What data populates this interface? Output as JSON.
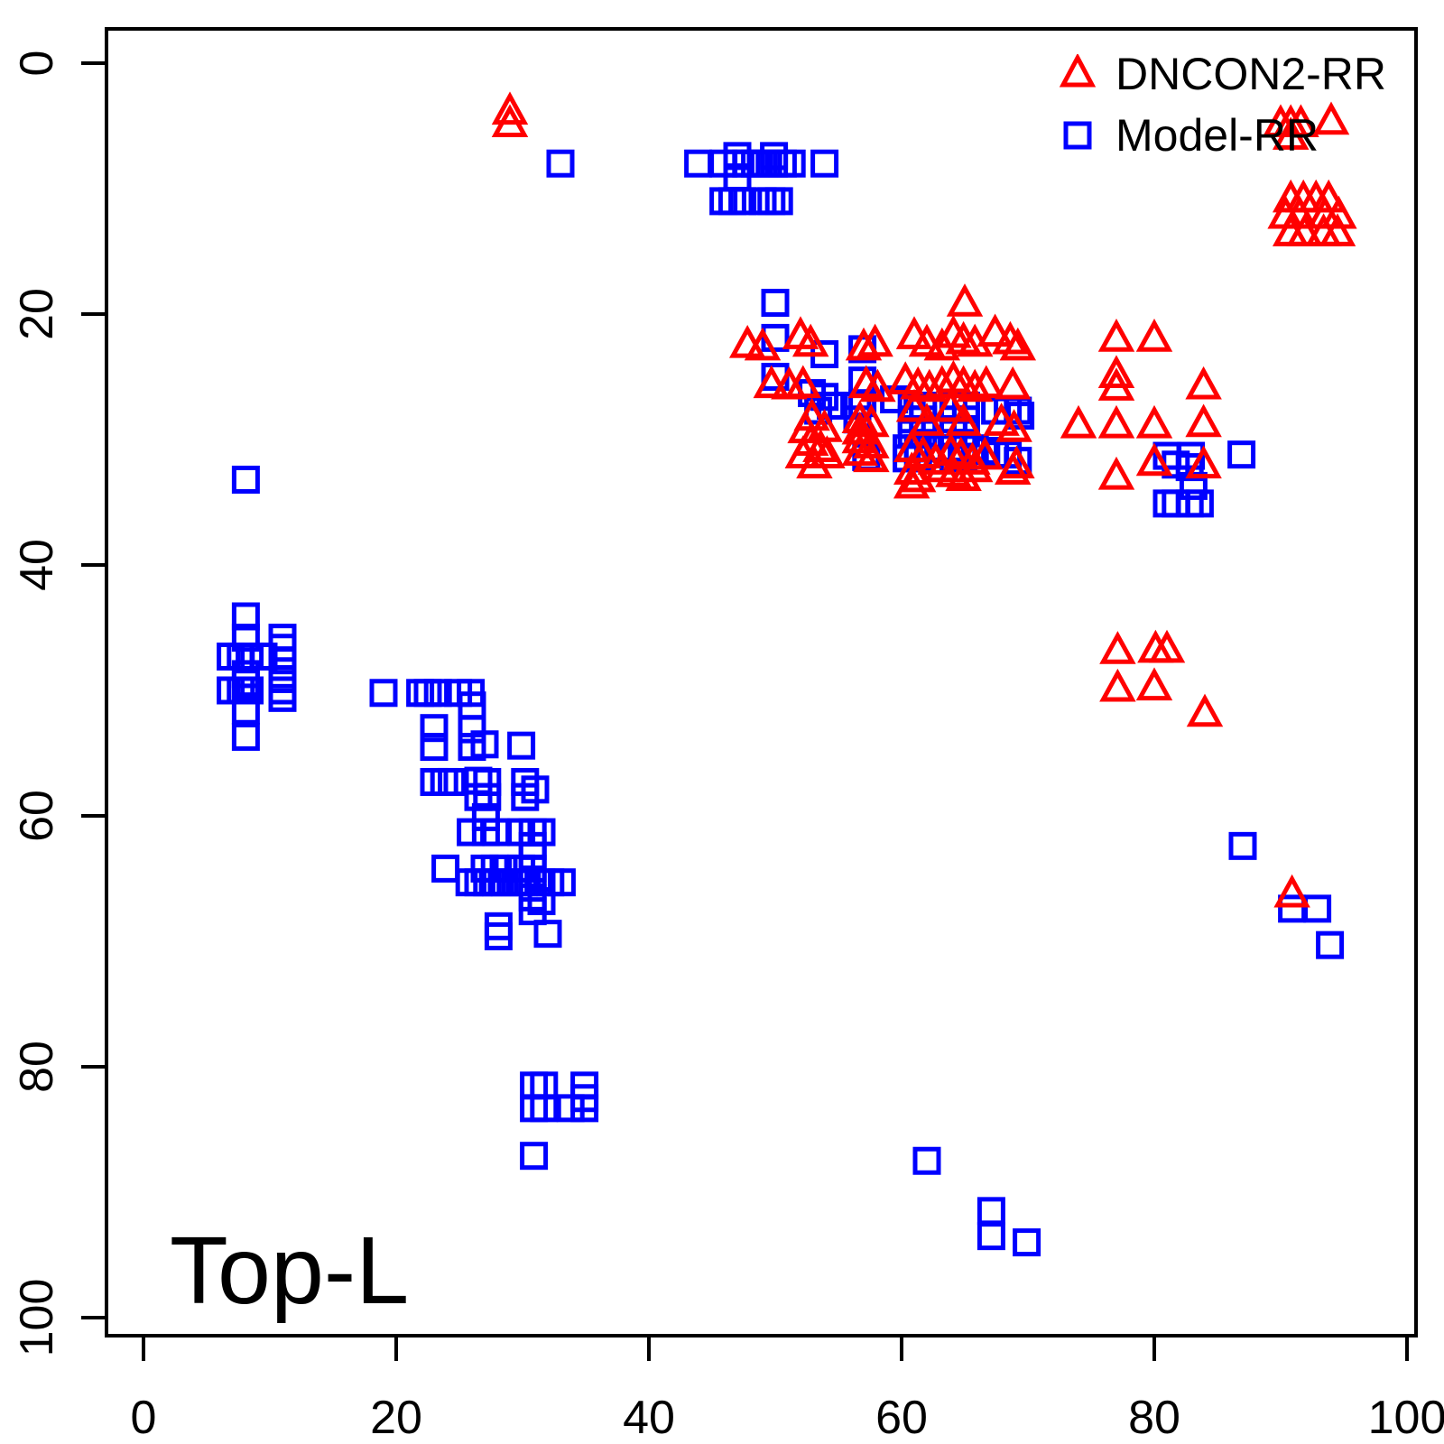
{
  "annotation": {
    "text": "Top-L"
  },
  "legend": {
    "items": [
      {
        "label": "DNCON2-RR",
        "marker": "triangle",
        "color": "#ff0000"
      },
      {
        "label": "Model-RR",
        "marker": "square",
        "color": "#0000ff"
      }
    ]
  },
  "axes": {
    "x_ticks": [
      0,
      20,
      40,
      60,
      80,
      100
    ],
    "y_ticks": [
      0,
      20,
      40,
      60,
      80,
      100
    ]
  },
  "chart_data": {
    "type": "scatter",
    "title": "",
    "xlabel": "",
    "ylabel": "",
    "xlim": [
      0,
      100
    ],
    "ylim": [
      100,
      0
    ],
    "y_axis_inverted": true,
    "grid": false,
    "legend_position": "top-right",
    "annotation": "Top-L",
    "series": [
      {
        "name": "Model-RR",
        "marker": "square",
        "color": "#0000ff",
        "points": [
          [
            33,
            8
          ],
          [
            43.9,
            8
          ],
          [
            45.9,
            8
          ],
          [
            47,
            7.4
          ],
          [
            49.9,
            7.4
          ],
          [
            47,
            8
          ],
          [
            47.7,
            8
          ],
          [
            48.4,
            8
          ],
          [
            49.1,
            8
          ],
          [
            49.9,
            8
          ],
          [
            50.6,
            8
          ],
          [
            51.3,
            8
          ],
          [
            53.9,
            8
          ],
          [
            47,
            9.1
          ],
          [
            45.9,
            11
          ],
          [
            46.6,
            11
          ],
          [
            47.4,
            11
          ],
          [
            49,
            11
          ],
          [
            49.7,
            11
          ],
          [
            50.3,
            11
          ],
          [
            8.1,
            33.2
          ],
          [
            50,
            19.1
          ],
          [
            50,
            21.9
          ],
          [
            53.9,
            23.2
          ],
          [
            56.9,
            22.8
          ],
          [
            50,
            25
          ],
          [
            52.9,
            26.3
          ],
          [
            53.9,
            26.6
          ],
          [
            56.9,
            25.3
          ],
          [
            56.9,
            27.1
          ],
          [
            59.4,
            26.8
          ],
          [
            53.4,
            27.7
          ],
          [
            54.4,
            27.3
          ],
          [
            56.5,
            27.3
          ],
          [
            56.5,
            28.4
          ],
          [
            60.8,
            27.3
          ],
          [
            61.7,
            27.3
          ],
          [
            60.8,
            28.4
          ],
          [
            61.7,
            28.4
          ],
          [
            60.8,
            29.5
          ],
          [
            61.7,
            29.5
          ],
          [
            64.1,
            27.3
          ],
          [
            65.1,
            27.3
          ],
          [
            64.1,
            28.4
          ],
          [
            65.1,
            28.4
          ],
          [
            64.1,
            29.5
          ],
          [
            65.1,
            29.5
          ],
          [
            67.4,
            27.7
          ],
          [
            68.4,
            27.7
          ],
          [
            69.2,
            27.7
          ],
          [
            69.4,
            28.1
          ],
          [
            57.2,
            31.4
          ],
          [
            60.4,
            30.7
          ],
          [
            61.3,
            30.7
          ],
          [
            62.1,
            30.7
          ],
          [
            62.9,
            30.7
          ],
          [
            60.4,
            31.5
          ],
          [
            61.3,
            31.5
          ],
          [
            64.1,
            30.7
          ],
          [
            64.9,
            30.7
          ],
          [
            65.8,
            30.7
          ],
          [
            64.1,
            31.5
          ],
          [
            64.9,
            31.5
          ],
          [
            66.7,
            30.9
          ],
          [
            67.4,
            31.2
          ],
          [
            68.4,
            31.2
          ],
          [
            69.2,
            31.7
          ],
          [
            81,
            31.3
          ],
          [
            82.9,
            31.3
          ],
          [
            81.7,
            32
          ],
          [
            82.8,
            32.2
          ],
          [
            86.9,
            31.2
          ],
          [
            83.1,
            33.7
          ],
          [
            81,
            35.1
          ],
          [
            81.7,
            35.1
          ],
          [
            82.8,
            35.1
          ],
          [
            83.6,
            35.1
          ],
          [
            8.1,
            44.1
          ],
          [
            8.1,
            45.8
          ],
          [
            6.9,
            47.3
          ],
          [
            7.7,
            47.3
          ],
          [
            8.4,
            47.3
          ],
          [
            9.5,
            47.3
          ],
          [
            11,
            45.8
          ],
          [
            11,
            46.6
          ],
          [
            11,
            47.6
          ],
          [
            8.1,
            48.7
          ],
          [
            8.1,
            49.4
          ],
          [
            6.9,
            50
          ],
          [
            7.7,
            50
          ],
          [
            8.4,
            50
          ],
          [
            11,
            49.1
          ],
          [
            11,
            50
          ],
          [
            11,
            50.6
          ],
          [
            8.1,
            51.6
          ],
          [
            8.1,
            53.7
          ],
          [
            19,
            50.2
          ],
          [
            21.9,
            50.2
          ],
          [
            22.5,
            50.2
          ],
          [
            23.3,
            50.2
          ],
          [
            24.9,
            50.2
          ],
          [
            25.9,
            50.2
          ],
          [
            26,
            51.2
          ],
          [
            23,
            53
          ],
          [
            23,
            54.5
          ],
          [
            26,
            53.1
          ],
          [
            26,
            54.5
          ],
          [
            27,
            54.3
          ],
          [
            29.9,
            54.4
          ],
          [
            23,
            57.3
          ],
          [
            23.8,
            57.3
          ],
          [
            24.4,
            57.3
          ],
          [
            26.5,
            57.2
          ],
          [
            27.2,
            57.3
          ],
          [
            26.5,
            58.5
          ],
          [
            27.2,
            58.5
          ],
          [
            30.2,
            57.3
          ],
          [
            31,
            57.9
          ],
          [
            30.2,
            58.5
          ],
          [
            27.1,
            60.1
          ],
          [
            25.9,
            61.3
          ],
          [
            27.1,
            61.3
          ],
          [
            27.9,
            61.3
          ],
          [
            29.9,
            61.3
          ],
          [
            30.8,
            61.3
          ],
          [
            31.5,
            61.3
          ],
          [
            30.8,
            62.4
          ],
          [
            30.8,
            63.2
          ],
          [
            23.9,
            64.2
          ],
          [
            27,
            64.2
          ],
          [
            27.8,
            64.2
          ],
          [
            28.5,
            64.2
          ],
          [
            29.9,
            64.2
          ],
          [
            30.8,
            64.2
          ],
          [
            25.8,
            65.3
          ],
          [
            26.5,
            65.3
          ],
          [
            27.2,
            65.3
          ],
          [
            27.9,
            65.3
          ],
          [
            28.6,
            65.3
          ],
          [
            29.4,
            65.3
          ],
          [
            30.1,
            65.3
          ],
          [
            30.8,
            65.3
          ],
          [
            31.5,
            65.3
          ],
          [
            32.2,
            65.3
          ],
          [
            33.1,
            65.3
          ],
          [
            30.8,
            66.5
          ],
          [
            31.5,
            66.8
          ],
          [
            30.8,
            67.6
          ],
          [
            28.1,
            68.8
          ],
          [
            28.1,
            69.6
          ],
          [
            32,
            69.4
          ],
          [
            30.9,
            81.5
          ],
          [
            31.7,
            81.5
          ],
          [
            34.9,
            81.5
          ],
          [
            34.9,
            82.5
          ],
          [
            30.9,
            83.3
          ],
          [
            31.7,
            83.3
          ],
          [
            33.8,
            83.3
          ],
          [
            34.9,
            83.3
          ],
          [
            30.9,
            87.1
          ],
          [
            62,
            87.5
          ],
          [
            87,
            62.4
          ],
          [
            90.9,
            67.4
          ],
          [
            92.9,
            67.4
          ],
          [
            93.9,
            70.3
          ],
          [
            67.1,
            91.5
          ],
          [
            67.1,
            93.5
          ],
          [
            69.9,
            94
          ]
        ]
      },
      {
        "name": "DNCON2-RR",
        "marker": "triangle",
        "color": "#ff0000",
        "points": [
          [
            29,
            4
          ],
          [
            29,
            5
          ],
          [
            90,
            5
          ],
          [
            90.8,
            5
          ],
          [
            91.6,
            5
          ],
          [
            94,
            4.8
          ],
          [
            90.8,
            6
          ],
          [
            90.8,
            11
          ],
          [
            91.8,
            11
          ],
          [
            92.8,
            11
          ],
          [
            93.8,
            11
          ],
          [
            90.4,
            12.3
          ],
          [
            91.5,
            12.3
          ],
          [
            93.5,
            12.3
          ],
          [
            94.6,
            12.3
          ],
          [
            90.8,
            13.7
          ],
          [
            91.9,
            13.7
          ],
          [
            93.4,
            13.7
          ],
          [
            94.5,
            13.7
          ],
          [
            65,
            19.3
          ],
          [
            47.8,
            22.6
          ],
          [
            49,
            22.8
          ],
          [
            52,
            21.9
          ],
          [
            52.8,
            22.5
          ],
          [
            57,
            22.8
          ],
          [
            57.9,
            22.5
          ],
          [
            61,
            21.9
          ],
          [
            62,
            22.5
          ],
          [
            63.2,
            22.8
          ],
          [
            64.1,
            21.8
          ],
          [
            64.9,
            22.3
          ],
          [
            65.8,
            22.5
          ],
          [
            67.4,
            21.7
          ],
          [
            68.6,
            22.3
          ],
          [
            69.2,
            22.8
          ],
          [
            49.7,
            25.8
          ],
          [
            51.1,
            25.9
          ],
          [
            52.2,
            25.8
          ],
          [
            57.2,
            25.8
          ],
          [
            58.1,
            26.1
          ],
          [
            60.3,
            25.5
          ],
          [
            61.3,
            25.9
          ],
          [
            62.2,
            26.1
          ],
          [
            63.2,
            25.8
          ],
          [
            64.1,
            25.4
          ],
          [
            64.9,
            25.8
          ],
          [
            65.8,
            26.1
          ],
          [
            66.7,
            25.8
          ],
          [
            68.8,
            25.9
          ],
          [
            52.4,
            29.4
          ],
          [
            52.9,
            28.4
          ],
          [
            53.9,
            29.3
          ],
          [
            56.7,
            28.6
          ],
          [
            57.6,
            28.9
          ],
          [
            56.7,
            29.5
          ],
          [
            61,
            27.7
          ],
          [
            62,
            28.8
          ],
          [
            63.9,
            27.7
          ],
          [
            64.9,
            28.8
          ],
          [
            67.9,
            28.8
          ],
          [
            68.9,
            29.3
          ],
          [
            52.8,
            30.4
          ],
          [
            53.6,
            30.9
          ],
          [
            54.1,
            31.4
          ],
          [
            52.2,
            31.4
          ],
          [
            53.1,
            32.2
          ],
          [
            56.7,
            30.2
          ],
          [
            57.6,
            30.6
          ],
          [
            56.7,
            31.2
          ],
          [
            57.6,
            31.7
          ],
          [
            60.8,
            30.9
          ],
          [
            61.7,
            31.4
          ],
          [
            62.7,
            31.9
          ],
          [
            63.9,
            31.2
          ],
          [
            64.7,
            31.5
          ],
          [
            65.6,
            31.9
          ],
          [
            66.6,
            31.5
          ],
          [
            69.1,
            32.2
          ],
          [
            60.8,
            32.7
          ],
          [
            63.2,
            32.5
          ],
          [
            64.1,
            32.9
          ],
          [
            64.9,
            33.2
          ],
          [
            65.8,
            32.5
          ],
          [
            61.3,
            33.3
          ],
          [
            60.8,
            33.8
          ],
          [
            68.8,
            32.7
          ],
          [
            77,
            22.1
          ],
          [
            80,
            22.1
          ],
          [
            77,
            25
          ],
          [
            77,
            26
          ],
          [
            83.9,
            25.9
          ],
          [
            74,
            29
          ],
          [
            77,
            29
          ],
          [
            80,
            29
          ],
          [
            83.9,
            28.9
          ],
          [
            80,
            32
          ],
          [
            83.9,
            32.2
          ],
          [
            77,
            33.1
          ],
          [
            77.1,
            47
          ],
          [
            80.1,
            46.9
          ],
          [
            81,
            46.9
          ],
          [
            77.1,
            50
          ],
          [
            80,
            49.9
          ],
          [
            84,
            52
          ],
          [
            90.9,
            66.4
          ]
        ]
      }
    ]
  }
}
